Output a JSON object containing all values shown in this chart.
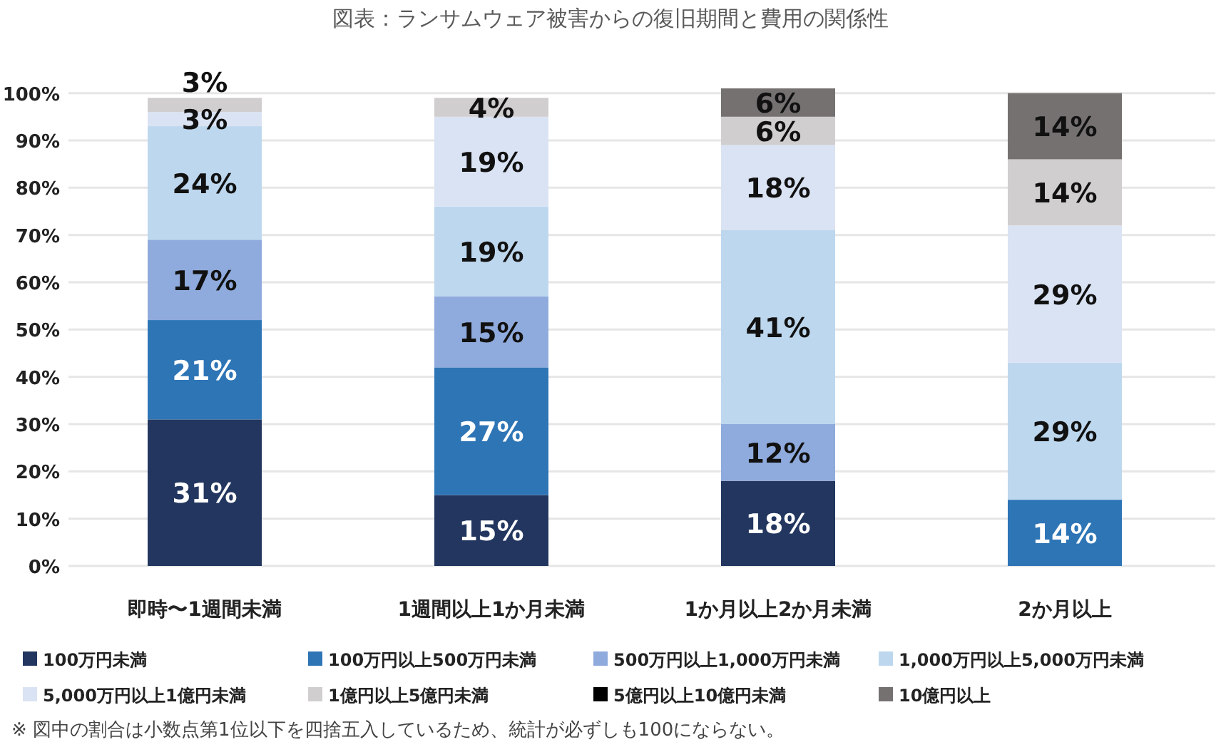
{
  "chart_data": {
    "type": "bar",
    "stacked": true,
    "title": "図表：ランサムウェア被害からの復旧期間と費用の関係性",
    "categories": [
      "即時〜1週間未満",
      "1週間以上1か月未満",
      "1か月以上2か月未満",
      "2か月以上"
    ],
    "series": [
      {
        "name": "100万円未満",
        "color": "#22365f",
        "values": [
          31,
          15,
          18,
          0
        ],
        "value_labels": [
          "31%",
          "15%",
          "18%",
          null
        ]
      },
      {
        "name": "100万円以上500万円未満",
        "color": "#2e75b6",
        "values": [
          21,
          27,
          0,
          14
        ],
        "value_labels": [
          "21%",
          "27%",
          null,
          "14%"
        ]
      },
      {
        "name": "500万円以上1,000万円未満",
        "color": "#8faadc",
        "values": [
          17,
          15,
          12,
          0
        ],
        "value_labels": [
          "17%",
          "15%",
          "12%",
          null
        ]
      },
      {
        "name": "1,000万円以上5,000万円未満",
        "color": "#bdd7ee",
        "values": [
          24,
          19,
          41,
          29
        ],
        "value_labels": [
          "24%",
          "19%",
          "41%",
          "29%"
        ]
      },
      {
        "name": "5,000万円以上1億円未満",
        "color": "#dae3f3",
        "values": [
          3,
          19,
          18,
          29
        ],
        "value_labels": [
          "3%",
          "19%",
          "18%",
          "29%"
        ]
      },
      {
        "name": "1億円以上5億円未満",
        "color": "#d0cece",
        "values": [
          3,
          4,
          6,
          14
        ],
        "value_labels": [
          "3%",
          "4%",
          "6%",
          "14%"
        ]
      },
      {
        "name": "5億円以上10億円未満",
        "color": "#000000",
        "values": [
          0,
          0,
          0,
          0
        ],
        "value_labels": [
          null,
          null,
          null,
          null
        ]
      },
      {
        "name": "10億円以上",
        "color": "#767171",
        "values": [
          0,
          0,
          6,
          14
        ],
        "value_labels": [
          null,
          null,
          "6%",
          "14%"
        ]
      }
    ],
    "ylim": [
      0,
      101
    ],
    "yticks": [
      {
        "value": 0,
        "label": "0%"
      },
      {
        "value": 10,
        "label": "10%"
      },
      {
        "value": 20,
        "label": "20%"
      },
      {
        "value": 30,
        "label": "30%"
      },
      {
        "value": 40,
        "label": "40%"
      },
      {
        "value": 50,
        "label": "50%"
      },
      {
        "value": 60,
        "label": "60%"
      },
      {
        "value": 70,
        "label": "70%"
      },
      {
        "value": 80,
        "label": "80%"
      },
      {
        "value": 90,
        "label": "90%"
      },
      {
        "value": 100,
        "label": "100%"
      }
    ],
    "grid": "y",
    "legend": "bottom",
    "annotations": [
      "※ 図中の割合は小数点第1位以下を四捨五入しているため、統計が必ずしも100にならない。"
    ]
  }
}
